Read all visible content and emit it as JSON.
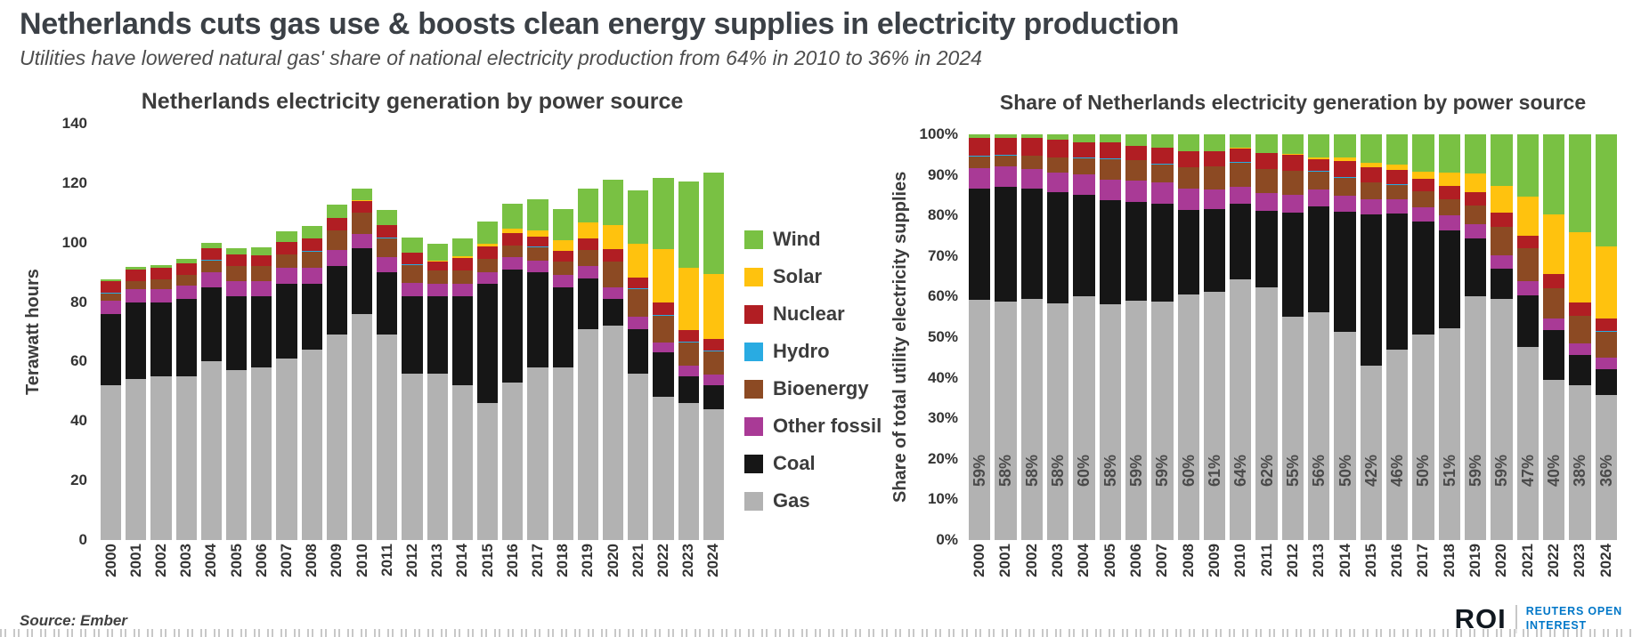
{
  "header": {
    "title": "Netherlands cuts gas use & boosts clean energy supplies in electricity production",
    "subtitle": "Utilities have lowered natural gas' share of national electricity production from 64% in 2010 to 36% in 2024"
  },
  "source": "Source: Ember",
  "logo": {
    "roi": "ROI",
    "line1": "REUTERS OPEN",
    "line2": "INTEREST",
    "blue": "#0077C8"
  },
  "chart_data": [
    {
      "type": "bar",
      "stacked": true,
      "title": "Netherlands electricity generation by power source",
      "xlabel": "",
      "ylabel": "Terawatt hours",
      "ylim": [
        0,
        140
      ],
      "yticks": [
        0,
        20,
        40,
        60,
        80,
        100,
        120,
        140
      ],
      "grid": false,
      "legend_position": "right-of-chart",
      "categories": [
        "2000",
        "2001",
        "2002",
        "2003",
        "2004",
        "2005",
        "2006",
        "2007",
        "2008",
        "2009",
        "2010",
        "2011",
        "2012",
        "2013",
        "2014",
        "2015",
        "2016",
        "2017",
        "2018",
        "2019",
        "2020",
        "2021",
        "2022",
        "2023",
        "2024"
      ],
      "series": [
        {
          "name": "Gas",
          "color": "#B2B2B2",
          "values": [
            52,
            54,
            55,
            55,
            60,
            57,
            58,
            61,
            64,
            69,
            76,
            69,
            56,
            56,
            52,
            46,
            53,
            58,
            58,
            71,
            72,
            56,
            48,
            46,
            44
          ]
        },
        {
          "name": "Coal",
          "color": "#161616",
          "values": [
            24,
            26,
            25,
            26,
            25,
            25,
            24,
            25,
            22,
            23,
            22,
            21,
            26,
            26,
            30,
            40,
            38,
            32,
            27,
            17,
            9,
            15,
            15,
            9,
            8
          ]
        },
        {
          "name": "Other fossil",
          "color": "#A93A96",
          "values": [
            4.5,
            4.5,
            4.5,
            4.5,
            5,
            5,
            5,
            5.5,
            5.5,
            5.5,
            5,
            5,
            4.5,
            4,
            4,
            4,
            4,
            4,
            4,
            4,
            4,
            4,
            3.5,
            3.5,
            3.5
          ]
        },
        {
          "name": "Bioenergy",
          "color": "#8C4A23",
          "values": [
            2.5,
            2.5,
            3,
            3.5,
            4,
            5,
            5,
            4.5,
            5.5,
            6.5,
            7,
            6.5,
            6,
            4.5,
            4.5,
            4.5,
            4,
            4.5,
            4.5,
            5.5,
            8.5,
            9.5,
            9,
            8,
            8
          ]
        },
        {
          "name": "Hydro",
          "color": "#29ABE2",
          "values": [
            0.1,
            0.1,
            0.1,
            0.1,
            0.1,
            0.1,
            0.1,
            0.1,
            0.1,
            0.1,
            0.1,
            0.1,
            0.1,
            0.1,
            0.1,
            0.1,
            0.1,
            0.1,
            0.1,
            0.1,
            0.1,
            0.1,
            0.1,
            0.1,
            0.1
          ]
        },
        {
          "name": "Nuclear",
          "color": "#B11E23",
          "values": [
            3.9,
            3.9,
            3.9,
            4,
            3.9,
            3.9,
            3.5,
            4.2,
            4.2,
            4.2,
            4,
            4.2,
            3.9,
            2.9,
            4.1,
            4,
            4,
            3.4,
            3.5,
            3.9,
            4.1,
            3.7,
            4.2,
            3.9,
            3.9
          ]
        },
        {
          "name": "Solar",
          "color": "#FFC20E",
          "values": [
            0,
            0,
            0,
            0,
            0,
            0,
            0,
            0,
            0,
            0,
            0.1,
            0.1,
            0.2,
            0.5,
            0.8,
            1.1,
            1.6,
            2.2,
            3.7,
            5.3,
            8.1,
            11.3,
            18,
            21,
            22
          ]
        },
        {
          "name": "Wind",
          "color": "#79C143",
          "values": [
            0.8,
            0.8,
            0.9,
            1.3,
            1.9,
            2,
            2.7,
            3.4,
            4.3,
            4.6,
            4,
            5.1,
            5,
            5.6,
            5.8,
            7.5,
            8.4,
            10.5,
            10.5,
            11.5,
            15.3,
            18,
            24,
            29,
            34
          ]
        }
      ]
    },
    {
      "type": "bar",
      "stacked": true,
      "normalized": true,
      "title": "Share of Netherlands electricity generation by power source",
      "xlabel": "",
      "ylabel": "Share of total utility electricity supplies",
      "ylim_percent": [
        0,
        100
      ],
      "yticks": [
        "0%",
        "10%",
        "20%",
        "30%",
        "40%",
        "50%",
        "60%",
        "70%",
        "80%",
        "90%",
        "100%"
      ],
      "grid": false,
      "categories": [
        "2000",
        "2001",
        "2002",
        "2003",
        "2004",
        "2005",
        "2006",
        "2007",
        "2008",
        "2009",
        "2010",
        "2011",
        "2012",
        "2013",
        "2014",
        "2015",
        "2016",
        "2017",
        "2018",
        "2019",
        "2020",
        "2021",
        "2022",
        "2023",
        "2024"
      ],
      "series_note": "Same series and colors as the first chart, shown as percentage of each year's total.",
      "gas_share_labels": [
        "59%",
        "58%",
        "58%",
        "58%",
        "60%",
        "58%",
        "59%",
        "59%",
        "60%",
        "61%",
        "64%",
        "62%",
        "55%",
        "56%",
        "50%",
        "42%",
        "46%",
        "50%",
        "51%",
        "59%",
        "59%",
        "47%",
        "40%",
        "38%",
        "36%"
      ]
    }
  ]
}
